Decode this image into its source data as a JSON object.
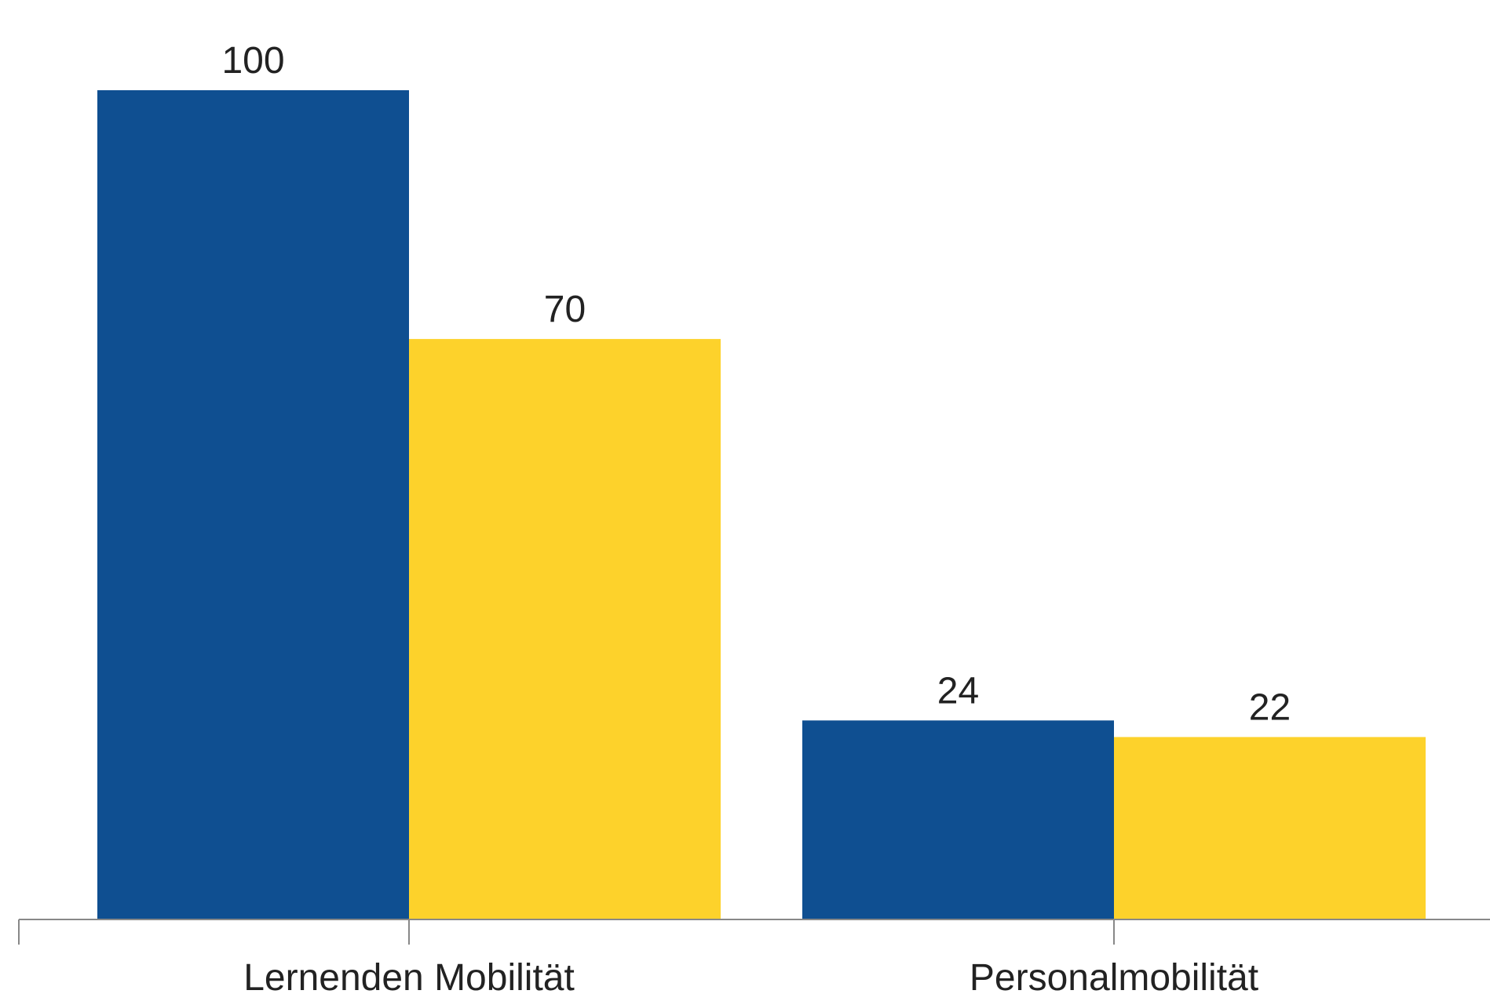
{
  "chart_data": {
    "type": "bar",
    "categories": [
      "Lernenden Mobilität",
      "Personalmobilität"
    ],
    "series": [
      {
        "color": "#0f4f91",
        "values": [
          100,
          24
        ]
      },
      {
        "color": "#fdd22b",
        "values": [
          70,
          22
        ]
      }
    ]
  }
}
